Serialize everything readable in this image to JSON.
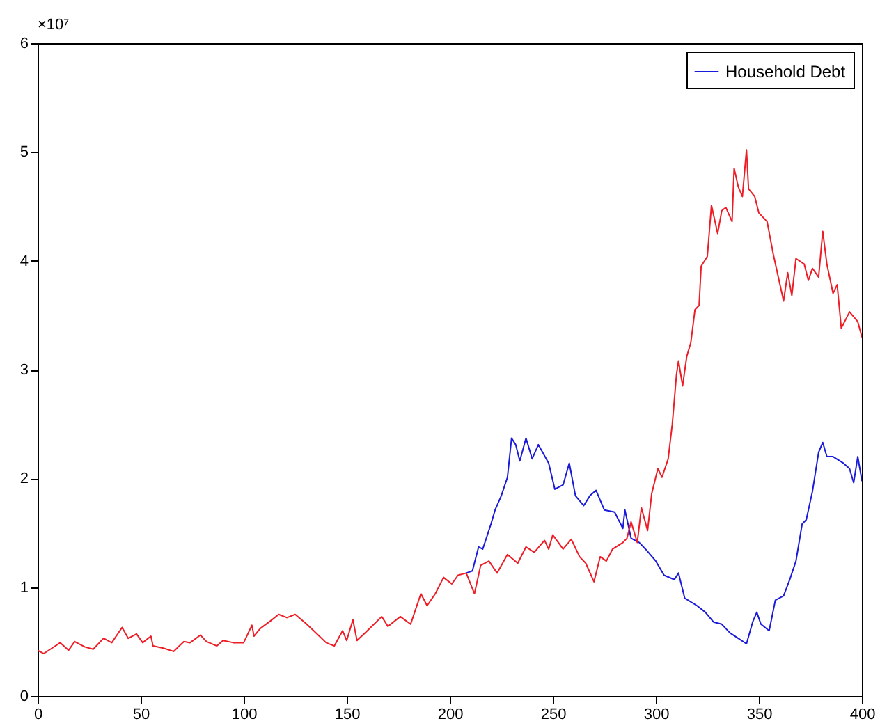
{
  "chart_data": {
    "type": "line",
    "annotations": [
      "×10⁷"
    ],
    "xlim": [
      0,
      400
    ],
    "xticks": [
      0,
      50,
      100,
      150,
      200,
      250,
      300,
      350,
      400
    ],
    "ylim": [
      0,
      6
    ],
    "yticks": [
      0,
      1,
      2,
      3,
      4,
      5,
      6
    ],
    "legend": "top right",
    "series": [
      {
        "name": "Household Debt",
        "color": "#1a1adb",
        "x": [
          208,
          211,
          214,
          216,
          220,
          222,
          225,
          228,
          230,
          232,
          234,
          237,
          240,
          243,
          248,
          251,
          255,
          258,
          261,
          265,
          268,
          271,
          275,
          280,
          284,
          285,
          288,
          292,
          295,
          300,
          304,
          309,
          311,
          314,
          320,
          324,
          328,
          332,
          336,
          340,
          344,
          347,
          349,
          351,
          355,
          358,
          362,
          365,
          368,
          371,
          373,
          376,
          379,
          381,
          383,
          386,
          391,
          394,
          396,
          398,
          400
        ],
        "values": [
          1.13,
          1.15,
          1.37,
          1.35,
          1.58,
          1.71,
          1.84,
          2.01,
          2.37,
          2.31,
          2.16,
          2.37,
          2.18,
          2.31,
          2.14,
          1.9,
          1.94,
          2.14,
          1.84,
          1.75,
          1.84,
          1.89,
          1.71,
          1.69,
          1.54,
          1.71,
          1.45,
          1.41,
          1.35,
          1.24,
          1.11,
          1.07,
          1.13,
          0.9,
          0.83,
          0.77,
          0.68,
          0.66,
          0.58,
          0.53,
          0.48,
          0.68,
          0.77,
          0.66,
          0.6,
          0.88,
          0.92,
          1.07,
          1.24,
          1.58,
          1.62,
          1.88,
          2.24,
          2.33,
          2.2,
          2.2,
          2.14,
          2.09,
          1.96,
          2.2,
          1.98
        ]
      },
      {
        "color": "#ee1c25",
        "x": [
          0,
          3,
          7,
          11,
          15,
          18,
          23,
          27,
          32,
          36,
          41,
          44,
          48,
          51,
          55,
          56,
          61,
          66,
          71,
          74,
          79,
          82,
          87,
          90,
          95,
          100,
          104,
          105,
          108,
          113,
          117,
          121,
          125,
          130,
          134,
          140,
          144,
          148,
          150,
          153,
          155,
          160,
          167,
          170,
          176,
          181,
          186,
          189,
          193,
          197,
          201,
          204,
          208,
          212,
          215,
          219,
          223,
          228,
          233,
          237,
          241,
          246,
          248,
          250,
          255,
          259,
          263,
          266,
          270,
          273,
          276,
          279,
          284,
          286,
          288,
          291,
          293,
          296,
          298,
          301,
          303,
          306,
          308,
          310,
          311,
          313,
          315,
          317,
          319,
          321,
          322,
          325,
          327,
          330,
          332,
          334,
          337,
          338,
          340,
          342,
          344,
          345,
          348,
          350,
          354,
          357,
          362,
          364,
          366,
          368,
          372,
          374,
          376,
          379,
          381,
          383,
          386,
          388,
          390,
          394,
          398,
          400
        ],
        "values": [
          0.42,
          0.39,
          0.44,
          0.49,
          0.42,
          0.5,
          0.45,
          0.43,
          0.53,
          0.49,
          0.63,
          0.53,
          0.57,
          0.49,
          0.55,
          0.46,
          0.44,
          0.41,
          0.5,
          0.49,
          0.56,
          0.5,
          0.46,
          0.51,
          0.49,
          0.49,
          0.65,
          0.55,
          0.62,
          0.69,
          0.75,
          0.72,
          0.75,
          0.67,
          0.6,
          0.49,
          0.46,
          0.6,
          0.51,
          0.7,
          0.51,
          0.6,
          0.73,
          0.64,
          0.73,
          0.66,
          0.94,
          0.83,
          0.94,
          1.09,
          1.03,
          1.11,
          1.13,
          0.94,
          1.2,
          1.24,
          1.13,
          1.3,
          1.22,
          1.37,
          1.32,
          1.43,
          1.35,
          1.48,
          1.35,
          1.44,
          1.28,
          1.22,
          1.05,
          1.28,
          1.24,
          1.35,
          1.41,
          1.45,
          1.6,
          1.41,
          1.73,
          1.52,
          1.86,
          2.09,
          2.01,
          2.18,
          2.5,
          2.95,
          3.08,
          2.85,
          3.12,
          3.25,
          3.55,
          3.59,
          3.95,
          4.04,
          4.51,
          4.25,
          4.46,
          4.49,
          4.36,
          4.85,
          4.68,
          4.59,
          5.02,
          4.66,
          4.59,
          4.44,
          4.36,
          4.06,
          3.63,
          3.89,
          3.68,
          4.02,
          3.97,
          3.82,
          3.93,
          3.85,
          4.27,
          3.97,
          3.7,
          3.78,
          3.38,
          3.53,
          3.44,
          3.3
        ]
      }
    ]
  }
}
